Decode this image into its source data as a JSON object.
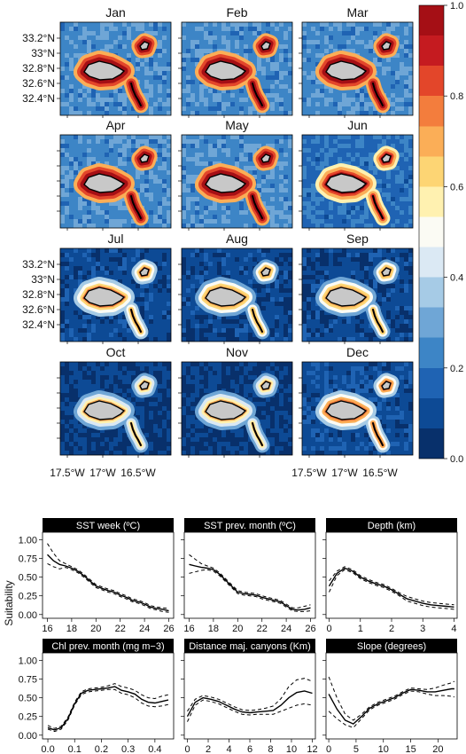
{
  "maps": {
    "months": [
      "Jan",
      "Feb",
      "Mar",
      "Apr",
      "May",
      "Jun",
      "Jul",
      "Aug",
      "Sep",
      "Oct",
      "Nov",
      "Dec"
    ],
    "month_level": [
      0.55,
      0.55,
      0.55,
      0.55,
      0.55,
      0.42,
      0.22,
      0.2,
      0.2,
      0.15,
      0.15,
      0.25
    ],
    "lat_ticks": [
      "33.2°N",
      "33°N",
      "32.8°N",
      "32.6°N",
      "32.4°N"
    ],
    "lon_ticks": [
      "17.5°W",
      "17°W",
      "16.5°W"
    ],
    "colorbar": {
      "ticks": [
        "1.0",
        "0.8",
        "0.6",
        "0.4",
        "0.2",
        "0.0"
      ],
      "colors": [
        "#08306b",
        "#0d4a95",
        "#1f63b3",
        "#3d85c6",
        "#6fa6d6",
        "#a6cbe6",
        "#dbe9f4",
        "#fbfbf4",
        "#fff1b0",
        "#fdd574",
        "#fbae57",
        "#f37d3d",
        "#e3462a",
        "#c51b20",
        "#a50f15"
      ]
    },
    "land_color": "#c8c8c8"
  },
  "chart_data": [
    {
      "type": "line",
      "title": "SST week (ºC)",
      "ylabel": "Suitability",
      "xlim": [
        15.6,
        26.4
      ],
      "ylim": [
        -0.05,
        1.1
      ],
      "xticks": [
        16,
        18,
        20,
        22,
        24,
        26
      ],
      "yticks": [
        0,
        0.25,
        0.5,
        0.75,
        1
      ],
      "show_yticks": true,
      "x": [
        16,
        16.5,
        17,
        17.5,
        18,
        18.5,
        19,
        19.5,
        20,
        20.5,
        21,
        21.5,
        22,
        22.5,
        23,
        23.5,
        24,
        24.5,
        25,
        25.5,
        26
      ],
      "series": [
        {
          "role": "fit",
          "values": [
            0.8,
            0.72,
            0.67,
            0.65,
            0.62,
            0.58,
            0.52,
            0.45,
            0.38,
            0.35,
            0.32,
            0.3,
            0.26,
            0.23,
            0.19,
            0.17,
            0.14,
            0.1,
            0.08,
            0.07,
            0.05
          ]
        },
        {
          "role": "lower",
          "values": [
            0.68,
            0.64,
            0.61,
            0.63,
            0.6,
            0.56,
            0.5,
            0.43,
            0.36,
            0.33,
            0.3,
            0.28,
            0.24,
            0.21,
            0.17,
            0.15,
            0.12,
            0.08,
            0.06,
            0.04,
            0.03
          ]
        },
        {
          "role": "upper",
          "values": [
            0.95,
            0.82,
            0.72,
            0.68,
            0.64,
            0.6,
            0.54,
            0.47,
            0.4,
            0.37,
            0.34,
            0.32,
            0.28,
            0.25,
            0.21,
            0.19,
            0.16,
            0.12,
            0.1,
            0.09,
            0.08
          ]
        }
      ]
    },
    {
      "type": "line",
      "title": "SST prev. month (ºC)",
      "xlim": [
        15.6,
        26.4
      ],
      "ylim": [
        -0.05,
        1.1
      ],
      "xticks": [
        16,
        18,
        20,
        22,
        24,
        26
      ],
      "yticks": [
        0,
        0.25,
        0.5,
        0.75,
        1
      ],
      "show_yticks": false,
      "x": [
        16,
        16.5,
        17,
        17.5,
        18,
        18.5,
        19,
        19.5,
        20,
        20.5,
        21,
        21.5,
        22,
        22.5,
        23,
        23.5,
        24,
        24.5,
        25,
        25.5,
        26
      ],
      "series": [
        {
          "role": "fit",
          "values": [
            0.67,
            0.65,
            0.63,
            0.62,
            0.6,
            0.54,
            0.46,
            0.38,
            0.3,
            0.28,
            0.27,
            0.26,
            0.23,
            0.21,
            0.19,
            0.17,
            0.12,
            0.07,
            0.06,
            0.07,
            0.09
          ]
        },
        {
          "role": "lower",
          "values": [
            0.55,
            0.57,
            0.59,
            0.6,
            0.58,
            0.52,
            0.44,
            0.36,
            0.28,
            0.26,
            0.25,
            0.24,
            0.21,
            0.19,
            0.17,
            0.15,
            0.1,
            0.05,
            0.04,
            0.04,
            0.05
          ]
        },
        {
          "role": "upper",
          "values": [
            0.8,
            0.74,
            0.68,
            0.65,
            0.62,
            0.56,
            0.48,
            0.4,
            0.32,
            0.3,
            0.29,
            0.28,
            0.25,
            0.23,
            0.21,
            0.19,
            0.14,
            0.09,
            0.09,
            0.11,
            0.13
          ]
        }
      ]
    },
    {
      "type": "line",
      "title": "Depth (km)",
      "xlim": [
        -0.1,
        4.1
      ],
      "ylim": [
        -0.05,
        1.1
      ],
      "xticks": [
        0,
        1,
        2,
        3,
        4
      ],
      "yticks": [
        0,
        0.25,
        0.5,
        0.75,
        1
      ],
      "show_yticks": false,
      "x": [
        0,
        0.25,
        0.5,
        0.75,
        1,
        1.25,
        1.5,
        1.75,
        2,
        2.25,
        2.5,
        2.75,
        3,
        3.25,
        3.5,
        3.75,
        4
      ],
      "series": [
        {
          "role": "fit",
          "values": [
            0.38,
            0.55,
            0.62,
            0.58,
            0.5,
            0.45,
            0.41,
            0.38,
            0.33,
            0.27,
            0.21,
            0.18,
            0.15,
            0.13,
            0.12,
            0.11,
            0.1
          ]
        },
        {
          "role": "lower",
          "values": [
            0.3,
            0.52,
            0.6,
            0.56,
            0.48,
            0.43,
            0.39,
            0.36,
            0.31,
            0.25,
            0.18,
            0.15,
            0.12,
            0.1,
            0.09,
            0.08,
            0.07
          ]
        },
        {
          "role": "upper",
          "values": [
            0.45,
            0.58,
            0.64,
            0.6,
            0.52,
            0.47,
            0.43,
            0.4,
            0.35,
            0.29,
            0.24,
            0.21,
            0.18,
            0.16,
            0.15,
            0.14,
            0.13
          ]
        }
      ]
    },
    {
      "type": "line",
      "title": "Chl prev. month (mg m−3)",
      "xlim": [
        -0.02,
        0.47
      ],
      "ylim": [
        -0.05,
        1.1
      ],
      "xticks": [
        0,
        0.1,
        0.2,
        0.3,
        0.4
      ],
      "xticklabels": [
        "0.0",
        "0.1",
        "0.2",
        "0.3",
        "0.4"
      ],
      "yticks": [
        0,
        0.25,
        0.5,
        0.75,
        1
      ],
      "show_yticks": true,
      "x": [
        0,
        0.025,
        0.05,
        0.075,
        0.1,
        0.125,
        0.15,
        0.175,
        0.2,
        0.225,
        0.25,
        0.275,
        0.3,
        0.325,
        0.35,
        0.375,
        0.4,
        0.425,
        0.45
      ],
      "series": [
        {
          "role": "fit",
          "values": [
            0.1,
            0.07,
            0.1,
            0.22,
            0.42,
            0.56,
            0.6,
            0.61,
            0.62,
            0.63,
            0.65,
            0.6,
            0.58,
            0.55,
            0.48,
            0.44,
            0.43,
            0.45,
            0.47
          ]
        },
        {
          "role": "lower",
          "values": [
            0.08,
            0.05,
            0.08,
            0.2,
            0.4,
            0.54,
            0.58,
            0.59,
            0.6,
            0.61,
            0.61,
            0.56,
            0.54,
            0.5,
            0.43,
            0.39,
            0.38,
            0.39,
            0.41
          ]
        },
        {
          "role": "upper",
          "values": [
            0.13,
            0.09,
            0.12,
            0.24,
            0.44,
            0.58,
            0.62,
            0.63,
            0.64,
            0.66,
            0.69,
            0.65,
            0.63,
            0.6,
            0.54,
            0.5,
            0.49,
            0.52,
            0.54
          ]
        }
      ]
    },
    {
      "type": "line",
      "title": "Distance maj. canyons (Km)",
      "xlim": [
        -0.3,
        12.3
      ],
      "ylim": [
        -0.05,
        1.1
      ],
      "xticks": [
        0,
        2,
        4,
        6,
        8,
        10,
        12
      ],
      "yticks": [
        0,
        0.25,
        0.5,
        0.75,
        1
      ],
      "show_yticks": false,
      "x": [
        0,
        0.75,
        1.5,
        2.25,
        3,
        3.75,
        4.5,
        5.25,
        6,
        6.75,
        7.5,
        8.25,
        9,
        9.75,
        10.5,
        11.25,
        12
      ],
      "series": [
        {
          "role": "fit",
          "values": [
            0.25,
            0.44,
            0.5,
            0.48,
            0.45,
            0.4,
            0.35,
            0.31,
            0.3,
            0.31,
            0.32,
            0.33,
            0.4,
            0.5,
            0.57,
            0.59,
            0.56
          ]
        },
        {
          "role": "lower",
          "values": [
            0.18,
            0.4,
            0.47,
            0.45,
            0.42,
            0.37,
            0.32,
            0.28,
            0.27,
            0.28,
            0.28,
            0.28,
            0.32,
            0.36,
            0.4,
            0.42,
            0.4
          ]
        },
        {
          "role": "upper",
          "values": [
            0.32,
            0.48,
            0.53,
            0.51,
            0.48,
            0.43,
            0.38,
            0.34,
            0.33,
            0.34,
            0.36,
            0.39,
            0.49,
            0.65,
            0.74,
            0.76,
            0.72
          ]
        }
      ]
    },
    {
      "type": "line",
      "title": "Slope (degrees)",
      "xlim": [
        -0.5,
        23.5
      ],
      "ylim": [
        -0.05,
        1.1
      ],
      "xticks": [
        0,
        5,
        10,
        15,
        20
      ],
      "yticks": [
        0,
        0.25,
        0.5,
        0.75,
        1
      ],
      "show_yticks": false,
      "x": [
        0,
        1.5,
        3,
        4.5,
        6,
        7.5,
        9,
        10.5,
        12,
        13.5,
        15,
        16.5,
        18,
        19.5,
        21,
        22.5,
        23
      ],
      "series": [
        {
          "role": "fit",
          "values": [
            0.55,
            0.35,
            0.2,
            0.15,
            0.25,
            0.36,
            0.42,
            0.46,
            0.5,
            0.56,
            0.61,
            0.6,
            0.58,
            0.58,
            0.6,
            0.62,
            0.62
          ]
        },
        {
          "role": "lower",
          "values": [
            0.32,
            0.22,
            0.14,
            0.1,
            0.22,
            0.34,
            0.4,
            0.44,
            0.48,
            0.54,
            0.59,
            0.58,
            0.55,
            0.53,
            0.53,
            0.52,
            0.51
          ]
        },
        {
          "role": "upper",
          "values": [
            0.78,
            0.5,
            0.28,
            0.2,
            0.28,
            0.38,
            0.44,
            0.48,
            0.52,
            0.58,
            0.63,
            0.62,
            0.61,
            0.63,
            0.67,
            0.7,
            0.72
          ]
        }
      ]
    }
  ]
}
